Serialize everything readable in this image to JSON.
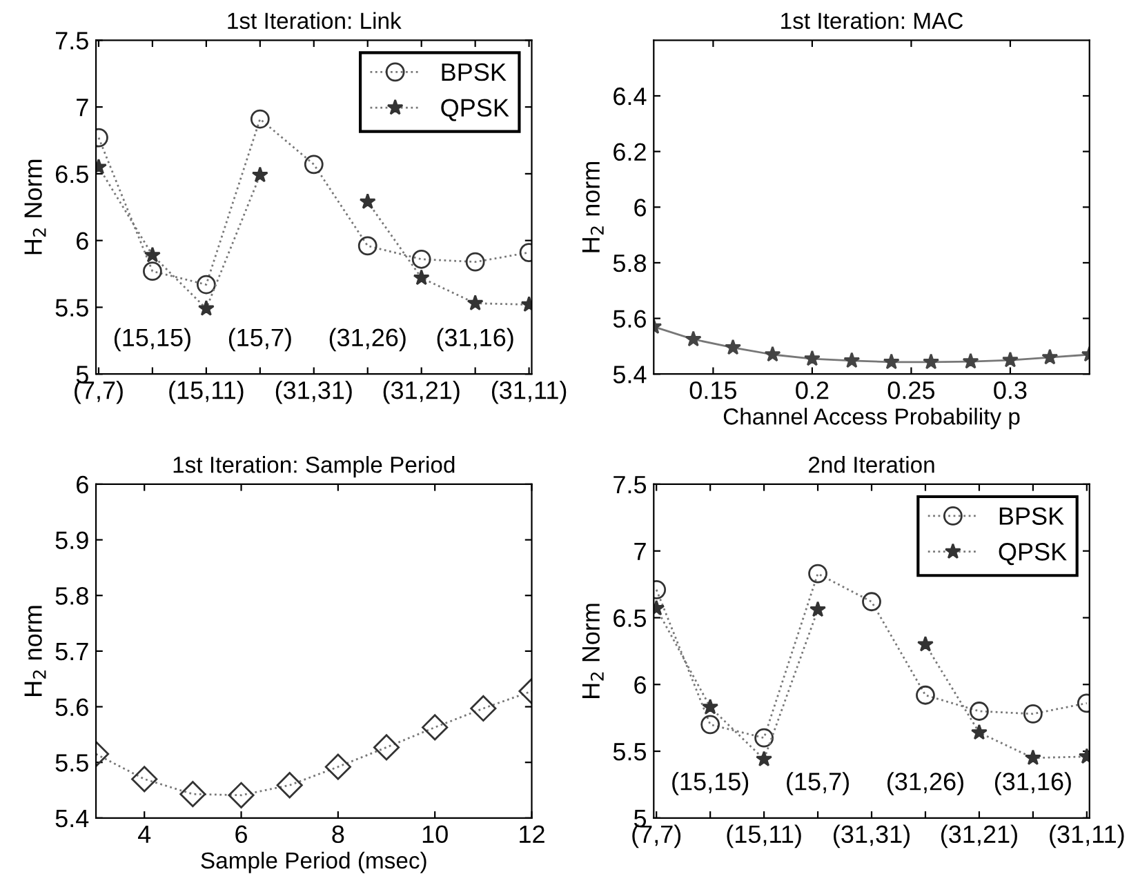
{
  "chart_data": [
    {
      "type": "line",
      "title": "1st Iteration: Link",
      "ylabel": "H$_{2}$ Norm",
      "categories": [
        "(7,7)",
        "(15,15)",
        "(15,11)",
        "(15,7)",
        "(31,31)",
        "(31,26)",
        "(31,21)",
        "(31,16)",
        "(31,11)"
      ],
      "ylim": [
        5,
        7.5
      ],
      "yticks": [
        5,
        5.5,
        6,
        6.5,
        7,
        7.5
      ],
      "line_style": "dotted",
      "legend": "top right",
      "grid": false,
      "series": [
        {
          "name": "BPSK",
          "color": "#333333",
          "marker": "circle",
          "values": [
            6.77,
            5.77,
            5.67,
            6.91,
            6.57,
            5.96,
            5.86,
            5.84,
            5.91
          ]
        },
        {
          "name": "QPSK",
          "color": "#333333",
          "marker": "star",
          "values": [
            6.55,
            5.89,
            5.49,
            6.49,
            null,
            6.29,
            5.72,
            5.53,
            5.52
          ]
        }
      ]
    },
    {
      "type": "line",
      "title": "1st Iteration: MAC",
      "xlabel": "Channel Access Probability p",
      "ylabel": "H$_{2}$ norm",
      "xlim": [
        0.12,
        0.34
      ],
      "xticks": [
        0.15,
        0.2,
        0.25,
        0.3
      ],
      "ylim": [
        5.4,
        6.6
      ],
      "yticks": [
        5.4,
        5.6,
        5.8,
        6,
        6.2,
        6.4
      ],
      "line_style": "solid",
      "marker": "star",
      "grid": false,
      "x": [
        0.12,
        0.14,
        0.16,
        0.18,
        0.2,
        0.22,
        0.24,
        0.26,
        0.28,
        0.3,
        0.32,
        0.34
      ],
      "series": [
        {
          "color": "#444444",
          "values": [
            5.57,
            5.525,
            5.495,
            5.47,
            5.455,
            5.448,
            5.443,
            5.443,
            5.445,
            5.45,
            5.46,
            5.47
          ]
        }
      ]
    },
    {
      "type": "line",
      "title": "1st Iteration: Sample Period",
      "xlabel": "Sample Period (msec)",
      "ylabel": "H$_{2}$ norm",
      "xlim": [
        3,
        12
      ],
      "xticks": [
        4,
        6,
        8,
        10,
        12
      ],
      "ylim": [
        5.4,
        6
      ],
      "yticks": [
        5.4,
        5.5,
        5.6,
        5.7,
        5.8,
        5.9,
        6
      ],
      "line_style": "dotted",
      "marker": "diamond",
      "grid": false,
      "x": [
        3,
        4,
        5,
        6,
        7,
        8,
        9,
        10,
        11,
        12
      ],
      "series": [
        {
          "color": "#333333",
          "values": [
            5.515,
            5.47,
            5.443,
            5.441,
            5.459,
            5.492,
            5.527,
            5.563,
            5.597,
            5.628
          ]
        }
      ]
    },
    {
      "type": "line",
      "title": "2nd Iteration",
      "ylabel": "H$_{2}$ Norm",
      "categories": [
        "(7,7)",
        "(15,15)",
        "(15,11)",
        "(15,7)",
        "(31,31)",
        "(31,26)",
        "(31,21)",
        "(31,16)",
        "(31,11)"
      ],
      "ylim": [
        5,
        7.5
      ],
      "yticks": [
        5,
        5.5,
        6,
        6.5,
        7,
        7.5
      ],
      "line_style": "dotted",
      "legend": "top right",
      "grid": false,
      "series": [
        {
          "name": "BPSK",
          "color": "#333333",
          "marker": "circle",
          "values": [
            6.71,
            5.7,
            5.6,
            6.83,
            6.62,
            5.92,
            5.8,
            5.78,
            5.86
          ]
        },
        {
          "name": "QPSK",
          "color": "#333333",
          "marker": "star",
          "values": [
            6.57,
            5.83,
            5.44,
            6.56,
            null,
            6.3,
            5.64,
            5.45,
            5.46
          ]
        }
      ]
    }
  ]
}
